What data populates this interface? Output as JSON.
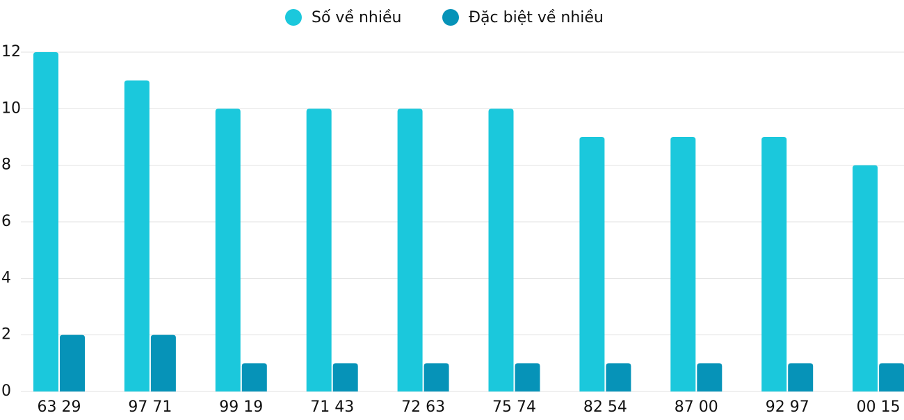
{
  "chart_data": {
    "type": "bar",
    "categories": [
      "63 29",
      "97 71",
      "99 19",
      "71 43",
      "72 63",
      "75 74",
      "82 54",
      "87 00",
      "92 97",
      "00 15"
    ],
    "series": [
      {
        "name": "Số về nhiều",
        "color": "#1bc8dc",
        "values": [
          12,
          11,
          10,
          10,
          10,
          10,
          9,
          9,
          9,
          8
        ]
      },
      {
        "name": "Đặc biệt về nhiều",
        "color": "#0693b8",
        "values": [
          2,
          2,
          1,
          1,
          1,
          1,
          1,
          1,
          1,
          1
        ]
      }
    ],
    "ylim": [
      0,
      12
    ],
    "yticks": [
      0,
      2,
      4,
      6,
      8,
      10,
      12
    ],
    "grid": true,
    "legend": "top"
  }
}
